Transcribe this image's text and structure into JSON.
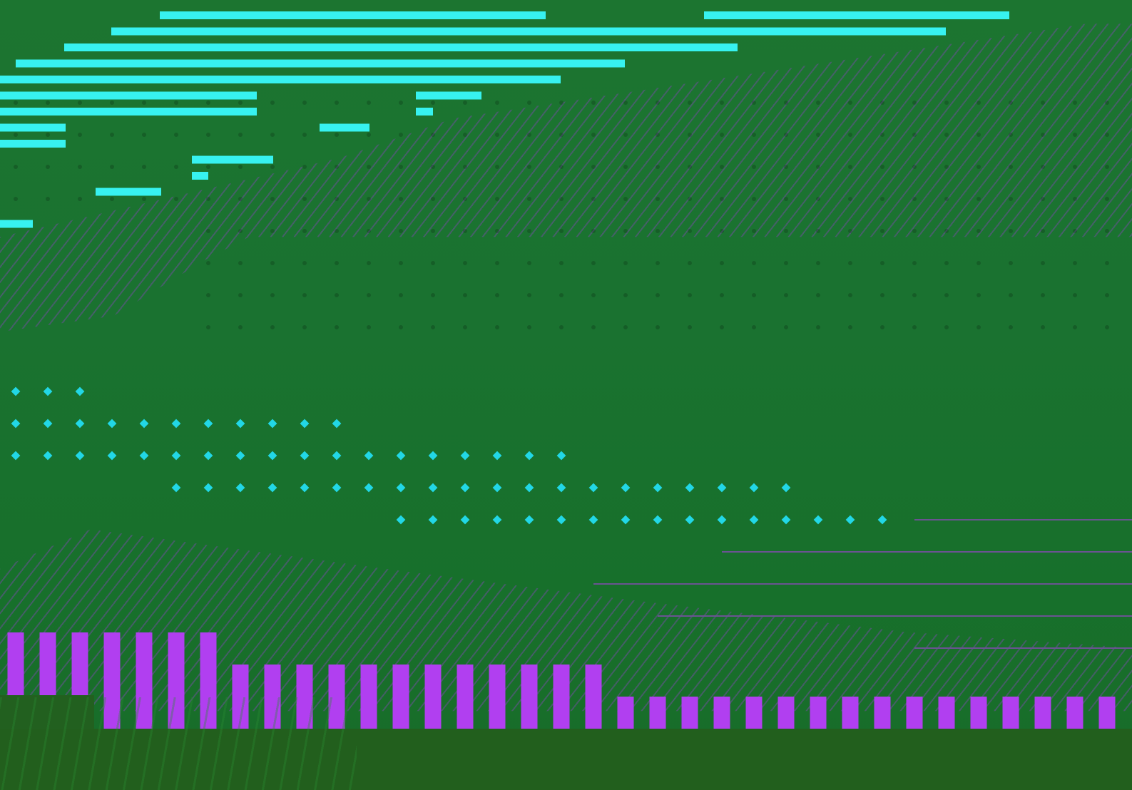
{
  "colors": {
    "background": "#1b6f2c",
    "beam": "#37f2f0",
    "gem": "#22d7e6",
    "pillar": "#b13ff0",
    "hatch": "#6a5392",
    "floor": "#225f1d"
  },
  "scene": {
    "beams": [
      {
        "row": 0,
        "segments": [
          [
            224,
            765
          ],
          [
            987,
            1415
          ]
        ]
      },
      {
        "row": 1,
        "segments": [
          [
            156,
            1326
          ]
        ]
      },
      {
        "row": 2,
        "segments": [
          [
            90,
            1034
          ]
        ]
      },
      {
        "row": 3,
        "segments": [
          [
            22,
            876
          ]
        ]
      },
      {
        "row": 4,
        "segments": [
          [
            0,
            786
          ]
        ]
      },
      {
        "row": 5,
        "segments": [
          [
            0,
            360
          ],
          [
            583,
            675
          ]
        ]
      },
      {
        "row": 6,
        "segments": [
          [
            0,
            360
          ],
          [
            583,
            607
          ]
        ]
      },
      {
        "row": 7,
        "segments": [
          [
            0,
            92
          ],
          [
            448,
            518
          ]
        ]
      },
      {
        "row": 8,
        "segments": [
          [
            0,
            92
          ]
        ]
      },
      {
        "row": 9,
        "segments": [
          [
            269,
            383
          ]
        ]
      },
      {
        "row": 10,
        "segments": [
          [
            269,
            292
          ]
        ]
      },
      {
        "row": 11,
        "segments": [
          [
            134,
            226
          ]
        ]
      },
      {
        "row": 13,
        "segments": [
          [
            0,
            46
          ]
        ]
      }
    ],
    "gem_rows": [
      {
        "row": 0,
        "cols": [
          0,
          2
        ]
      },
      {
        "row": 1,
        "cols": [
          0,
          10
        ]
      },
      {
        "row": 2,
        "cols": [
          0,
          17
        ]
      },
      {
        "row": 3,
        "cols": [
          5,
          24
        ]
      },
      {
        "row": 4,
        "cols": [
          12,
          27
        ]
      }
    ],
    "pillars": [
      {
        "from": 0,
        "to": 2,
        "level": 2
      },
      {
        "from": 3,
        "to": 6,
        "level": 3
      },
      {
        "from": 7,
        "to": 18,
        "level": 2
      },
      {
        "from": 19,
        "to": 34,
        "level": 1
      }
    ],
    "rails": [
      {
        "row": 0,
        "from_col": 28
      },
      {
        "row": 1,
        "from_col": 22
      },
      {
        "row": 2,
        "from_col": 18
      },
      {
        "row": 3,
        "from_col": 20
      },
      {
        "row": 4,
        "from_col": 28
      }
    ]
  }
}
